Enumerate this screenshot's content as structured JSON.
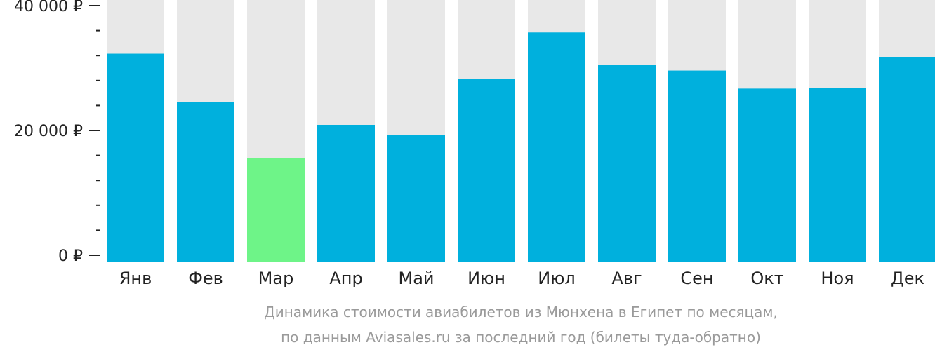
{
  "chart_data": {
    "type": "bar",
    "title": "",
    "xlabel": "",
    "ylabel": "",
    "categories": [
      "Янв",
      "Фев",
      "Мар",
      "Апр",
      "Май",
      "Июн",
      "Июл",
      "Авг",
      "Сен",
      "Окт",
      "Ноя",
      "Дек"
    ],
    "values": [
      32300,
      24500,
      15600,
      20900,
      19300,
      28300,
      35700,
      30500,
      29600,
      26700,
      26800,
      31700
    ],
    "max_values": [
      42000,
      42000,
      42000,
      42000,
      42000,
      42000,
      42000,
      42000,
      42000,
      42000,
      42000,
      42000
    ],
    "highlight_index": 2,
    "ylim": [
      0,
      42000
    ],
    "y_ticks": [
      {
        "value": 0,
        "label": "0 ₽"
      },
      {
        "value": 20000,
        "label": "20 000 ₽"
      },
      {
        "value": 40000,
        "label": "40 000 ₽"
      }
    ],
    "y_minor_step": 4000,
    "colors": {
      "bar": "#00b0dd",
      "bar_highlight": "#6ef488",
      "bar_background": "#e8e8e8",
      "axis": "#222222"
    },
    "caption": [
      "Динамика стоимости авиабилетов из Мюнхена в Египет по месяцам,",
      "по данным Aviasales.ru за последний год (билеты туда-обратно)"
    ]
  }
}
